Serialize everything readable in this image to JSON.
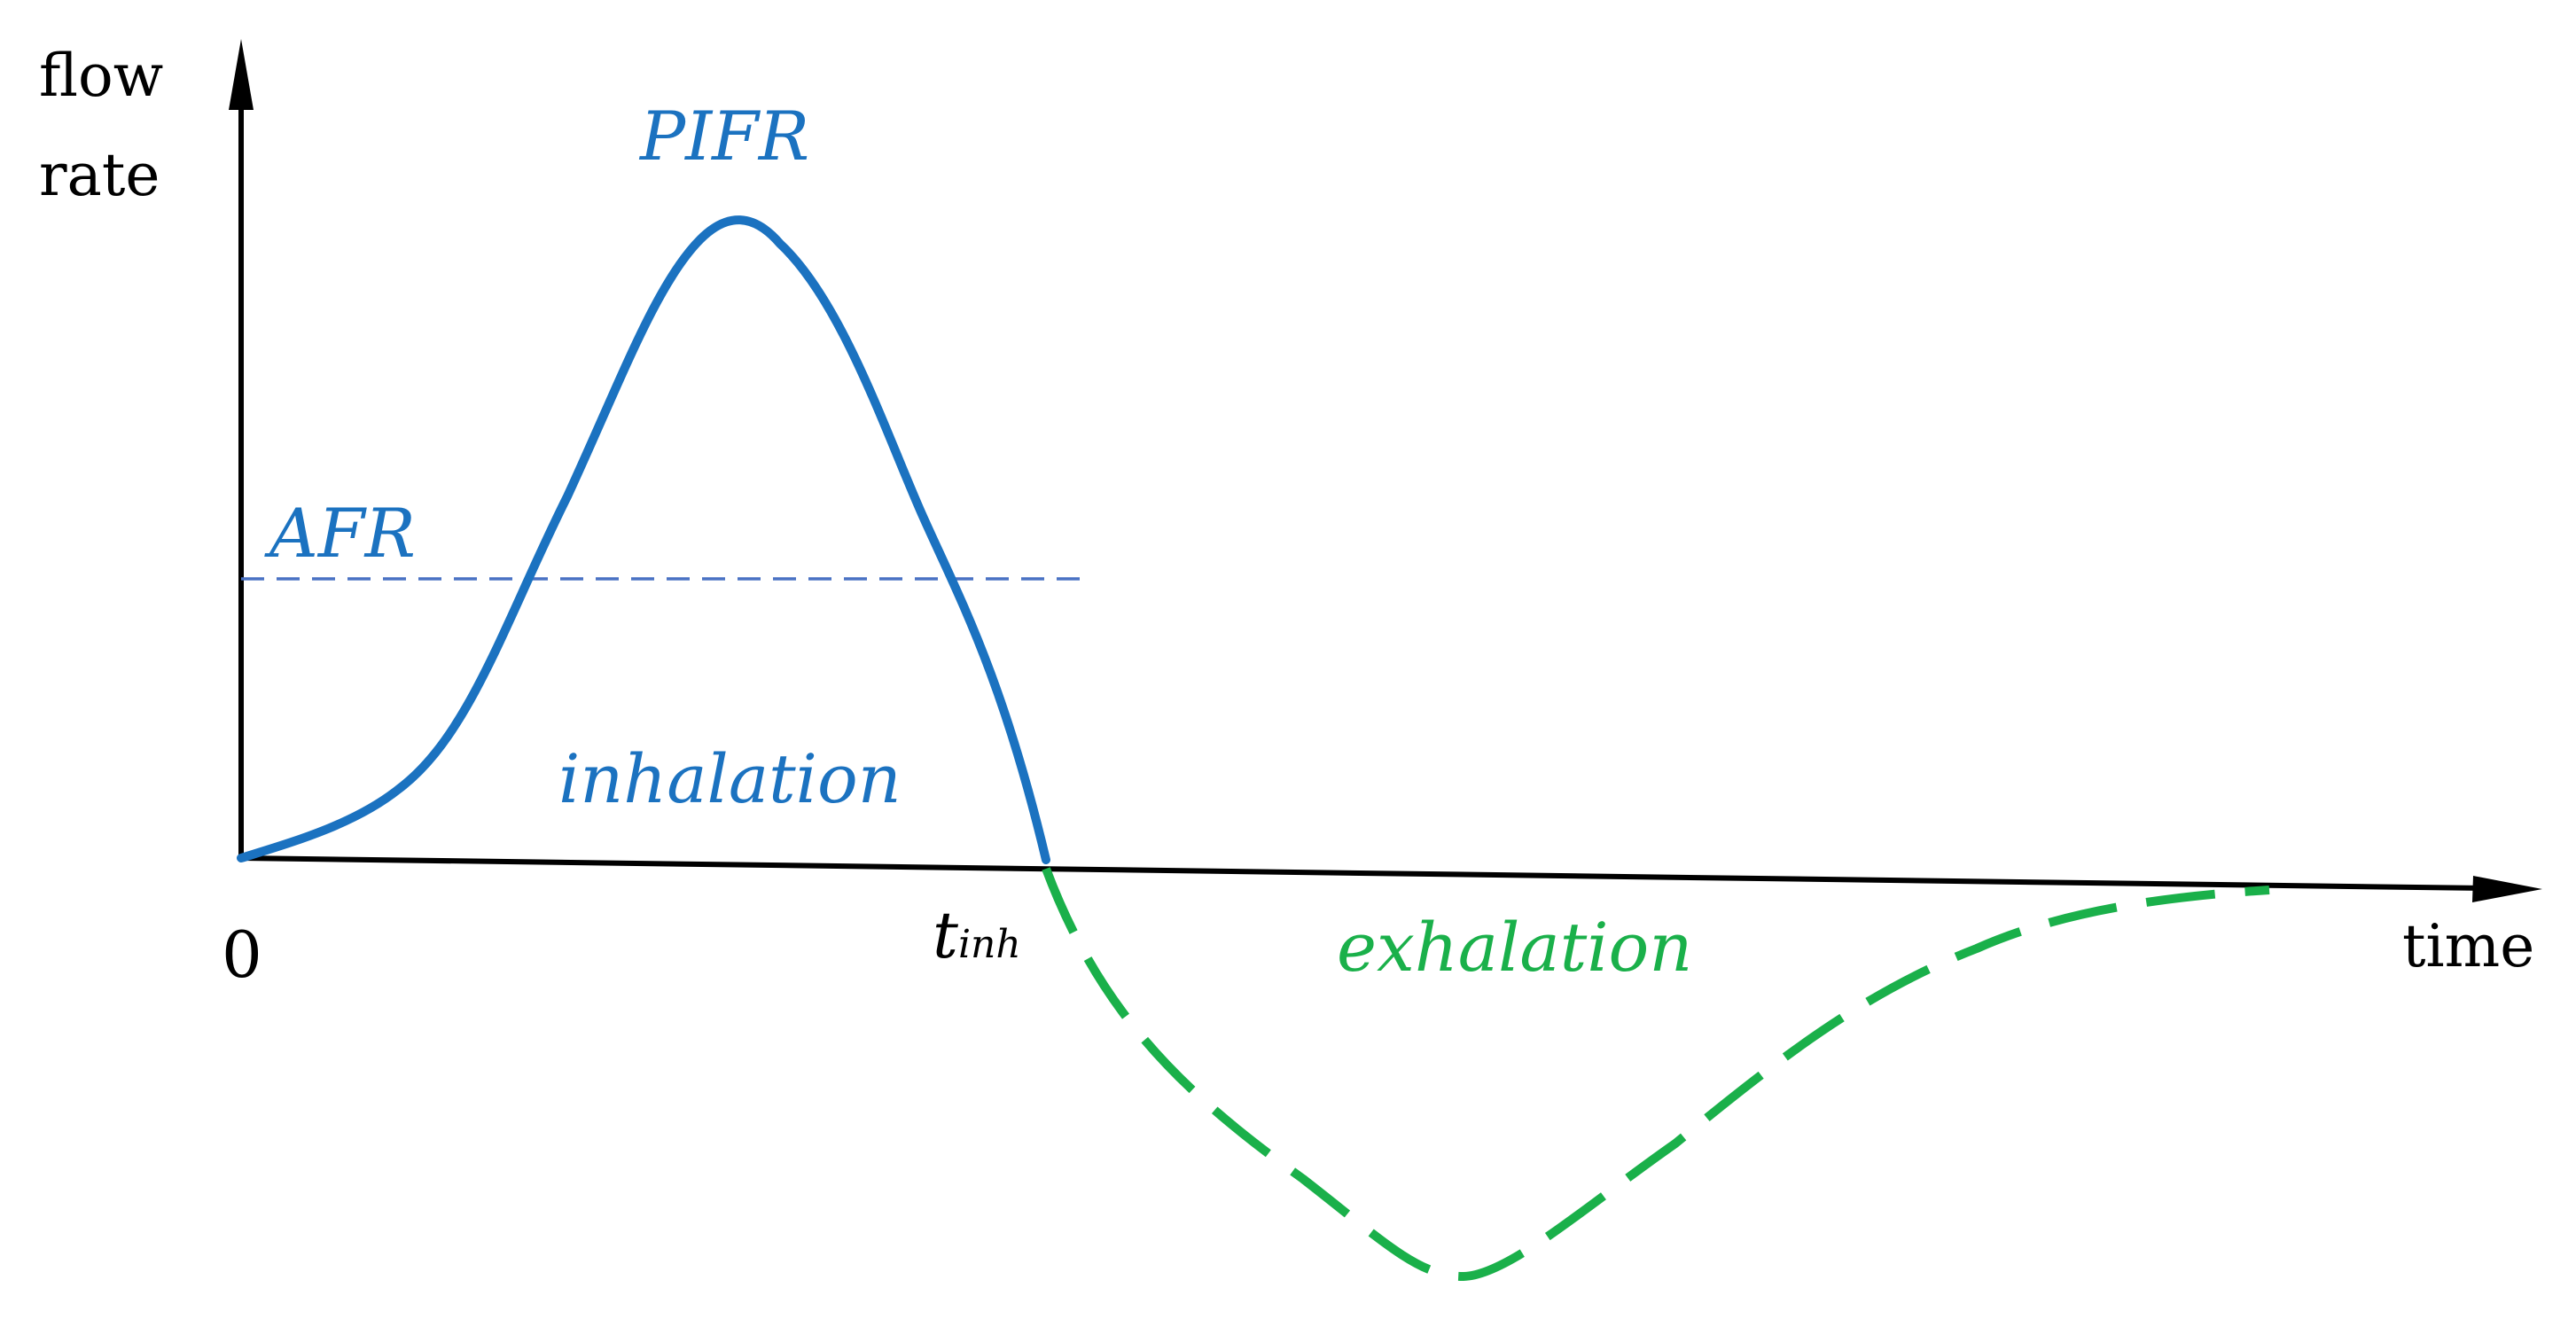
{
  "labels": {
    "y_axis_line1": "flow",
    "y_axis_line2": "rate",
    "x_axis": "time",
    "origin": "0",
    "t_inh_main": "t",
    "t_inh_sub": "inh",
    "pifr": "PIFR",
    "afr": "AFR",
    "inhalation": "inhalation",
    "exhalation": "exhalation"
  },
  "colors": {
    "axis": "#000000",
    "inhalation": "#1b72c0",
    "afr_line": "#4a72c4",
    "exhalation": "#1ab04a"
  }
}
